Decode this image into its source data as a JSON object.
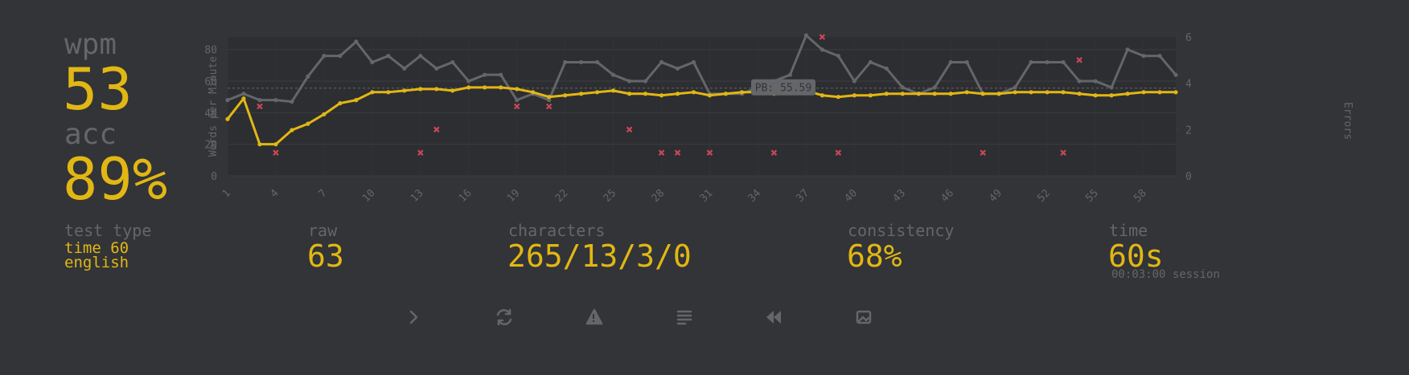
{
  "stats": {
    "wpm_label": "wpm",
    "wpm": "53",
    "acc_label": "acc",
    "acc": "89%",
    "test_type_label": "test type",
    "test_type": "time 60",
    "language": "english",
    "raw_label": "raw",
    "raw": "63",
    "characters_label": "characters",
    "characters": "265/13/3/0",
    "consistency_label": "consistency",
    "consistency": "68%",
    "time_label": "time",
    "time": "60s",
    "session": "00:03:00 session"
  },
  "chart_data": {
    "type": "line",
    "y_label": "Words per Minute",
    "y2_label": "Errors",
    "x": [
      1,
      2,
      3,
      4,
      5,
      6,
      7,
      8,
      9,
      10,
      11,
      12,
      13,
      14,
      15,
      16,
      17,
      18,
      19,
      20,
      21,
      22,
      23,
      24,
      25,
      26,
      27,
      28,
      29,
      30,
      31,
      32,
      33,
      34,
      35,
      36,
      37,
      38,
      39,
      40,
      41,
      42,
      43,
      44,
      45,
      46,
      47,
      48,
      49,
      50,
      51,
      52,
      53,
      54,
      55,
      56,
      57,
      58,
      59,
      60
    ],
    "series": [
      {
        "color": "#646669",
        "values": [
          48,
          52,
          48,
          48,
          47,
          63,
          76,
          76,
          85,
          72,
          76,
          68,
          76,
          68,
          72,
          60,
          64,
          64,
          48,
          52,
          48,
          72,
          72,
          72,
          64,
          60,
          60,
          72,
          68,
          72,
          52,
          52,
          52,
          56,
          60,
          64,
          89,
          80,
          76,
          60,
          72,
          68,
          56,
          52,
          56,
          72,
          72,
          52,
          52,
          56,
          72,
          72,
          72,
          60,
          60,
          56,
          80,
          76,
          76,
          64
        ]
      },
      {
        "color": "#e2b714",
        "values": [
          36,
          49,
          20,
          20,
          29,
          33,
          39,
          46,
          48,
          53,
          53,
          54,
          55,
          55,
          54,
          56,
          56,
          56,
          55,
          53,
          50,
          51,
          52,
          53,
          54,
          52,
          52,
          51,
          52,
          53,
          51,
          52,
          53,
          53,
          52,
          53,
          54,
          51,
          50,
          51,
          51,
          52,
          52,
          52,
          52,
          52,
          53,
          52,
          52,
          53,
          53,
          53,
          53,
          52,
          51,
          51,
          52,
          53,
          53,
          53
        ]
      },
      {
        "type": "scatter",
        "axis": "y2",
        "color": "#ca4754",
        "x": [
          3,
          4,
          13,
          14,
          19,
          21,
          26,
          28,
          29,
          31,
          35,
          38,
          39,
          48,
          53,
          54
        ],
        "values": [
          3,
          1,
          1,
          2,
          3,
          3,
          2,
          1,
          1,
          1,
          1,
          6,
          1,
          1,
          1,
          5
        ]
      }
    ],
    "annotation": {
      "value": 55.59,
      "label": "PB: 55.59"
    },
    "xlim": [
      1,
      60
    ],
    "xticks": [
      1,
      4,
      7,
      10,
      13,
      16,
      19,
      22,
      25,
      28,
      31,
      34,
      37,
      40,
      43,
      46,
      49,
      52,
      55,
      58
    ],
    "ylim": [
      0,
      88
    ],
    "yticks": [
      0,
      20,
      40,
      60,
      80
    ],
    "y2lim": [
      0,
      6
    ],
    "y2ticks": [
      0,
      2,
      4,
      6
    ],
    "grid": true
  }
}
